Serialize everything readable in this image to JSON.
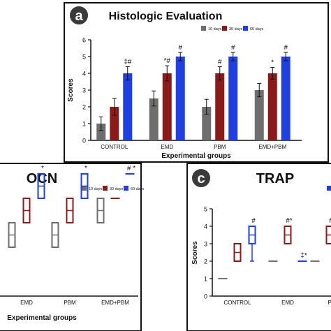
{
  "figure": {
    "panels": [
      {
        "letter": "a",
        "title": "Histologic Evaluation"
      },
      {
        "letter": "",
        "title": "OCN"
      },
      {
        "letter": "c",
        "title": "TRAP"
      }
    ]
  },
  "colors": {
    "d10": "#6e6e6e",
    "d30": "#8b1a1a",
    "d60": "#1f3fe0",
    "frame": "#111111",
    "badge": "#3a3a3a"
  },
  "chart_data": [
    {
      "type": "bar",
      "title": "Histologic Evaluation",
      "xlabel": "Experimental groups",
      "ylabel": "Scores",
      "ylim": [
        0,
        6
      ],
      "yticks": [
        "0",
        "1",
        "2",
        "3",
        "4",
        "5",
        "6"
      ],
      "categories": [
        "CONTROL",
        "EMD",
        "PBM",
        "EMD+PBM"
      ],
      "legend": [
        "10 days",
        "30 days",
        "60 days"
      ],
      "legend_position": "top-right",
      "series": [
        {
          "name": "10 days",
          "values": [
            1,
            2.5,
            2,
            3
          ],
          "err": [
            0.4,
            0.45,
            0.45,
            0.4
          ],
          "annotations": [
            "",
            "",
            "",
            ""
          ]
        },
        {
          "name": "30 days",
          "values": [
            2,
            4,
            4,
            4
          ],
          "err": [
            0.5,
            0.45,
            0.4,
            0.35
          ],
          "annotations": [
            "",
            "*#",
            "#",
            "*"
          ]
        },
        {
          "name": "60 days",
          "values": [
            4,
            5,
            5,
            5
          ],
          "err": [
            0.4,
            0.25,
            0.25,
            0.25
          ],
          "annotations": [
            "‡#",
            "#",
            "#",
            "#"
          ]
        }
      ]
    },
    {
      "type": "box",
      "title": "OCN",
      "xlabel": "Experimental groups",
      "ylim": [
        0,
        5
      ],
      "categories": [
        "EMD",
        "PBM",
        "EMD+PBM"
      ],
      "legend": [
        "10 days",
        "30 days",
        "60 days"
      ],
      "legend_position": "top-right",
      "series": [
        {
          "name": "10 days",
          "boxes": [
            [
              2,
              2,
              2.5,
              3,
              3
            ],
            [
              2,
              2,
              2.5,
              3,
              3
            ],
            [
              3,
              3,
              3.5,
              4,
              4
            ]
          ],
          "annotations": [
            "",
            "",
            ""
          ]
        },
        {
          "name": "30 days",
          "boxes": [
            [
              3,
              3,
              3.5,
              4,
              4
            ],
            [
              3,
              3,
              3.5,
              4,
              4
            ],
            [
              4,
              4,
              4,
              4,
              4
            ]
          ],
          "annotations": [
            "",
            "",
            ""
          ]
        },
        {
          "name": "60 days",
          "boxes": [
            [
              4,
              4,
              4.5,
              5,
              5
            ],
            [
              4,
              4,
              4.5,
              5,
              5
            ],
            [
              5,
              5,
              5,
              5,
              5
            ]
          ],
          "annotations": [
            "*",
            "*",
            "# *"
          ]
        }
      ]
    },
    {
      "type": "box",
      "title": "TRAP",
      "xlabel": "",
      "ylabel": "Scores",
      "ylim": [
        0,
        5
      ],
      "yticks": [
        "0",
        "1",
        "2",
        "3",
        "4",
        "5"
      ],
      "categories": [
        "CONTROL",
        "EMD",
        "P"
      ],
      "series": [
        {
          "name": "10 days",
          "boxes": [
            [
              1,
              1,
              1,
              1,
              1
            ],
            [
              2,
              2,
              2,
              2,
              2
            ],
            [
              2,
              2,
              2,
              2,
              2
            ]
          ],
          "annotations": [
            "",
            "",
            ""
          ]
        },
        {
          "name": "30 days",
          "boxes": [
            [
              2,
              2,
              2.5,
              3,
              3
            ],
            [
              3,
              3,
              3.5,
              4,
              4
            ],
            [
              3,
              3,
              3.5,
              4,
              4
            ]
          ],
          "annotations": [
            "",
            "#*",
            "#"
          ]
        },
        {
          "name": "60 days",
          "boxes": [
            [
              2,
              3,
              3.5,
              4,
              4
            ],
            [
              2,
              2,
              2,
              2,
              2
            ],
            null
          ],
          "annotations": [
            "#",
            "‡*",
            ""
          ]
        }
      ]
    }
  ]
}
